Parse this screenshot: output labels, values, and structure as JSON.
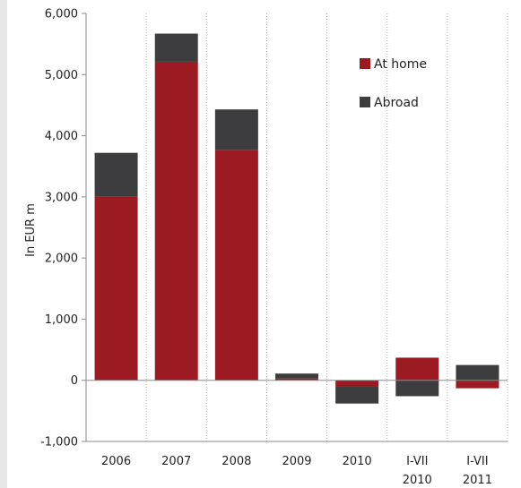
{
  "chart_data": {
    "type": "bar",
    "stacked": true,
    "ylabel": "In EUR m",
    "ylim": [
      -1000,
      6000
    ],
    "yticks": [
      -1000,
      0,
      1000,
      2000,
      3000,
      4000,
      5000,
      6000
    ],
    "ytick_labels": [
      "-1,000",
      "0",
      "1,000",
      "2,000",
      "3,000",
      "4,000",
      "5,000",
      "6,000"
    ],
    "categories": [
      "2006",
      "2007",
      "2008",
      "2009",
      "2010",
      "I-VII 2010",
      "I-VII 2011"
    ],
    "category_label_lines": [
      [
        "2006"
      ],
      [
        "2007"
      ],
      [
        "2008"
      ],
      [
        "2009"
      ],
      [
        "2010"
      ],
      [
        "I-VII",
        "2010"
      ],
      [
        "I-VII",
        "2011"
      ]
    ],
    "grid": "vertical-dotted",
    "legend_position": "top-right",
    "series": [
      {
        "name": "At home",
        "color": "#9c1b22",
        "values": [
          3000,
          5210,
          3770,
          30,
          -100,
          370,
          -130
        ]
      },
      {
        "name": "Abroad",
        "color": "#3d3d3f",
        "values": [
          720,
          460,
          660,
          80,
          -280,
          -260,
          250
        ]
      }
    ]
  }
}
